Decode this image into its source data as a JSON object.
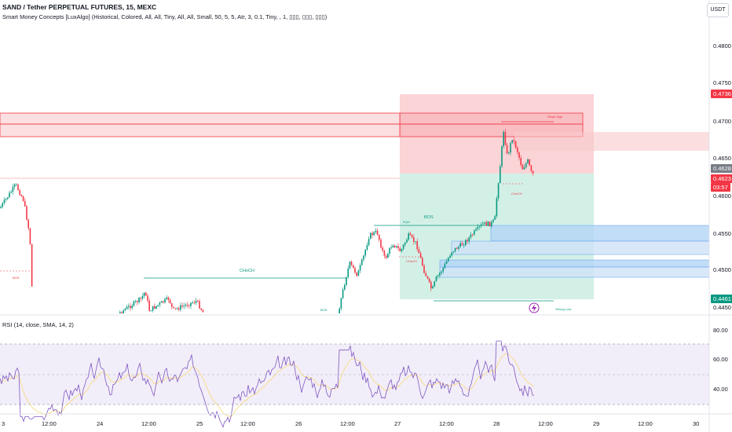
{
  "header": {
    "title": "SAND / Tether PERPETUAL FUTURES, 15, MEXC",
    "indicator": "Smart Money Concepts [LuxAlgo] (Historical, Colored, All, All, Tiny, All, All, Small, 50, 5, 5, Atr, 3, 0.1, Tiny, , 1, ▯▯▯, ▯▯▯, ▯▯▯)",
    "currency_button": "USDT"
  },
  "price_axis": {
    "ticks": [
      "0.4800",
      "0.4750",
      "0.4700",
      "0.4650",
      "0.4600",
      "0.4550",
      "0.4500",
      "0.4450"
    ],
    "tags": [
      {
        "text": "0.4736",
        "color": "#f23645"
      },
      {
        "text": "0.4628",
        "color": "#787b86"
      },
      {
        "text": "0.4623",
        "color": "#f23645"
      },
      {
        "text": "03:57",
        "color": "#f23645"
      },
      {
        "text": "0.4461",
        "color": "#089981"
      }
    ]
  },
  "rsi": {
    "label": "RSI (14, close, SMA, 14, 2)",
    "ticks": [
      "80.00",
      "60.00",
      "40.00"
    ]
  },
  "time_axis": {
    "labels": [
      "3",
      "12:00",
      "24",
      "12:00",
      "25",
      "12:00",
      "26",
      "12:00",
      "27",
      "12:00",
      "28",
      "12:00",
      "29",
      "12:00",
      "30"
    ]
  },
  "annotations": {
    "choch_left": "CHoCH",
    "bos_main": "BOS",
    "choch_right": "CHoCH",
    "weak_high": "Weak High",
    "strong_low": "Strong Low",
    "bos_small": "BOS",
    "eqh": "EQH",
    "bos_left": "BOS",
    "choch_mid": "CHoCH"
  },
  "colors": {
    "up": "#089981",
    "down": "#f23645",
    "rsi_line": "#7e57c2",
    "rsi_ma": "#f7d774",
    "rsi_band": "#ede7f6",
    "supply_zone": "#f8c4c8",
    "demand_zone": "#b3d4f5",
    "target_zone": "#c8ece1",
    "stop_zone": "#f9c9cc"
  }
}
